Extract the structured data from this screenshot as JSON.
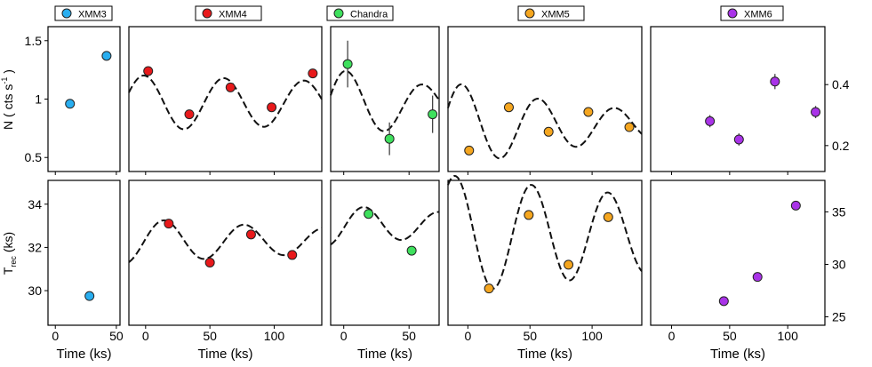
{
  "chart_data": {
    "type": "scatter",
    "panels": [
      {
        "name": "XMM3",
        "color": "#29aef0",
        "x_ticks": [
          0,
          50
        ],
        "top": {
          "points": [
            [
              12,
              0.96
            ],
            [
              42,
              1.37
            ]
          ],
          "err": [
            0,
            0
          ]
        },
        "bottom": {
          "points": [
            [
              28,
              29.75
            ]
          ],
          "err": [
            0
          ]
        }
      },
      {
        "name": "XMM4",
        "color": "#e8191b",
        "x_ticks": [
          0,
          50,
          100
        ],
        "top": {
          "points": [
            [
              2,
              1.24
            ],
            [
              34,
              0.87
            ],
            [
              66,
              1.1
            ],
            [
              98,
              0.93
            ],
            [
              130,
              1.22
            ]
          ],
          "err": [
            0,
            0,
            0,
            0,
            0
          ]
        },
        "bottom": {
          "points": [
            [
              18,
              33.1
            ],
            [
              50,
              31.3
            ],
            [
              82,
              32.6
            ],
            [
              114,
              31.65
            ]
          ],
          "err": [
            0,
            0,
            0,
            0
          ]
        }
      },
      {
        "name": "Chandra",
        "color": "#3ee05d",
        "x_ticks": [
          0,
          50
        ],
        "top": {
          "points": [
            [
              3,
              1.3
            ],
            [
              35,
              0.66
            ],
            [
              68,
              0.87
            ]
          ],
          "err": [
            0.2,
            0.14,
            0.16
          ]
        },
        "bottom": {
          "points": [
            [
              19,
              33.55
            ],
            [
              52,
              31.85
            ]
          ],
          "err": [
            0,
            0
          ]
        }
      },
      {
        "name": "XMM5",
        "color": "#f5a61f",
        "x_ticks": [
          0,
          50,
          100
        ],
        "top": {
          "points": [
            [
              1,
              0.56
            ],
            [
              33,
              0.93
            ],
            [
              65,
              0.72
            ],
            [
              97,
              0.89
            ],
            [
              130,
              0.76
            ]
          ],
          "err": [
            0.03,
            0.03,
            0.03,
            0.03,
            0.03
          ]
        },
        "bottom": {
          "points": [
            [
              17,
              30.1
            ],
            [
              49,
              33.5
            ],
            [
              81,
              31.2
            ],
            [
              113,
              33.4
            ]
          ],
          "err": [
            0,
            0,
            0,
            0
          ]
        }
      },
      {
        "name": "XMM6",
        "color": "#a933e8",
        "x_ticks": [
          0,
          50,
          100
        ],
        "top": {
          "points": [
            [
              33,
              0.28
            ],
            [
              58,
              0.22
            ],
            [
              89,
              0.41
            ],
            [
              124,
              0.31
            ]
          ],
          "err": [
            0.02,
            0.02,
            0.025,
            0.02
          ]
        },
        "bottom": {
          "points": [
            [
              45,
              26.5
            ],
            [
              74,
              28.8
            ],
            [
              107,
              35.6
            ]
          ],
          "err": [
            0,
            0,
            0
          ]
        }
      }
    ],
    "top_left_axis": {
      "label": "N ( cts s",
      "sup": "-1",
      "close": " )",
      "ticks": [
        0.5,
        1,
        1.5
      ],
      "tick_labels": [
        "0.5",
        "1",
        "1.5"
      ],
      "range": [
        0.38,
        1.62
      ]
    },
    "top_right_axis": {
      "ticks": [
        0.2,
        0.4
      ],
      "tick_labels": [
        "0.2",
        "0.4"
      ],
      "range": [
        0.115,
        0.59
      ]
    },
    "bottom_left_axis": {
      "label": "T",
      "sub": "rec",
      "unit": " (ks)",
      "ticks": [
        30,
        32,
        34
      ],
      "tick_labels": [
        "30",
        "32",
        "34"
      ],
      "range": [
        28.4,
        35.1
      ]
    },
    "bottom_right_axis": {
      "ticks": [
        25,
        30,
        35
      ],
      "tick_labels": [
        "25",
        "30",
        "35"
      ],
      "range": [
        24.2,
        38.0
      ]
    },
    "xlabel": "Time (ks)",
    "grid": false,
    "legend_placement": "top",
    "model_curve_style": "dashed"
  }
}
